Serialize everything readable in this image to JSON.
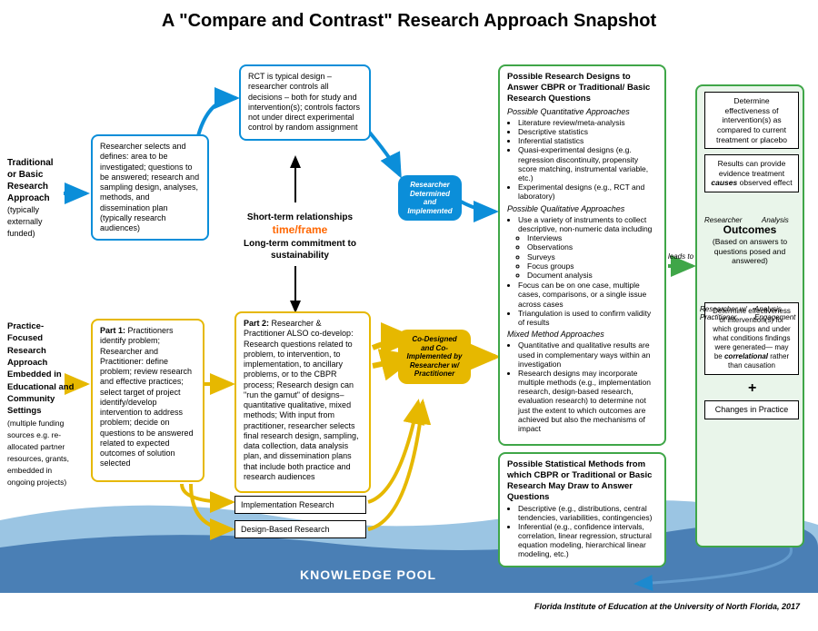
{
  "title": "A \"Compare and Contrast\" Research Approach Snapshot",
  "colors": {
    "blue": "#0b8ed9",
    "yellow": "#e6b800",
    "green": "#3fa648",
    "orange": "#ff6600",
    "pool1": "#9bc5e3",
    "pool2": "#4a7fb5",
    "text": "#000000"
  },
  "leftLabels": {
    "traditional": {
      "bold1": "Traditional",
      "bold2": "or Basic",
      "bold3": "Research",
      "bold4": "Approach",
      "note": "(typically externally funded)"
    },
    "practice": {
      "bold": "Practice-Focused Research Approach Embedded in Educational and Community Settings",
      "note": "(multiple funding sources e.g. re-allocated partner resources, grants, embedded in ongoing projects)"
    }
  },
  "blueBox1": "Researcher selects and defines: area to be investigated; questions to be answered; research and sampling design, analyses, methods, and dissemination plan (typically research audiences)",
  "blueBox2": "RCT is typical design – researcher controls all decisions – both for study and intervention(s); controls factors not under direct experimental control by random assignment",
  "blueBadge": "Researcher Determined and Implemented",
  "center": {
    "line1": "Short-term relationships",
    "timeframe": "time/frame",
    "line2": "Long-term commitment to sustainability"
  },
  "yellowBox1": {
    "part": "Part 1:",
    "text": " Practitioners identify problem; Researcher and Practitioner: define problem; review research and effective practices; select target of project identify/develop intervention to address problem; decide on questions to be answered related to expected outcomes of solution selected"
  },
  "yellowBox2": {
    "part": "Part 2:",
    "text": " Researcher & Practitioner ALSO co-develop: Research questions related to problem, to intervention, to implementation, to ancillary problems, or to the CBPR process; Research design can \"run the gamut\" of designs– quantitative qualitative, mixed methods; With input from practitioner, researcher selects final research design, sampling, data collection, data analysis plan, and dissemination plans that include both practice and research audiences"
  },
  "implBox": "Implementation Research",
  "designBox": "Design-Based Research",
  "yellowBadge": "Co-Designed and Co-Implemented by Researcher w/ Practitioner",
  "greenDesigns": {
    "title": "Possible Research Designs to Answer CBPR or Traditional/ Basic Research Questions",
    "quantHead": "Possible Quantitative Approaches",
    "quant": [
      "Literature review/meta-analysis",
      "Descriptive statistics",
      "Inferential statistics",
      "Quasi-experimental designs (e.g. regression discontinuity, propensity score matching, instrumental variable, etc.)",
      "Experimental designs (e.g., RCT and laboratory)"
    ],
    "qualHead": "Possible Qualitative Approaches",
    "qualIntro": "Use a variety of instruments to collect descriptive, non-numeric data including",
    "qualSub": [
      "Interviews",
      "Observations",
      "Surveys",
      "Focus groups",
      "Document analysis"
    ],
    "qualMore": [
      "Focus can be on one case, multiple cases, comparisons, or a single issue across cases",
      "Triangulation is used to confirm validity of results"
    ],
    "mixedHead": "Mixed Method Approaches",
    "mixed": [
      "Quantitative and qualitative results are used in complementary ways within an investigation",
      "Research designs may incorporate multiple methods (e.g., implementation research, design-based research, evaluation research) to determine not just the extent to which outcomes are achieved but also the mechanisms of impact"
    ]
  },
  "greenStats": {
    "title": "Possible Statistical Methods from which CBPR or Traditional or Basic Research May Draw to Answer Questions",
    "items": [
      "Descriptive (e.g., distributions, central tendencies, variabilities, contingencies)",
      "Inferential (e.g., confidence intervals, correlation, linear regression, structural equation modeling, hierarchical linear modeling, etc.)"
    ]
  },
  "leadsTo": "leads to",
  "outcomes": {
    "top": "Determine effectiveness of intervention(s) as compared to current treatment or placebo",
    "evidence": "Results can provide evidence treatment causes observed effect",
    "causesWord": "causes",
    "title": "Outcomes",
    "sub": "(Based on answers to questions posed and answered)",
    "researcher": "Researcher",
    "analysis": "Analysis",
    "researcherW": "Researcher w/ Practitioner",
    "analysisE": "Analysis Engagement",
    "bottom": "Determine effectiveness of intervention(s) for which groups and under what conditions findings were generated— may be correlational rather than causation",
    "correlWord": "correlational",
    "changes": "Changes in Practice"
  },
  "knowledgePool": "KNOWLEDGE POOL",
  "footer": "Florida Institute of Education at the University of North Florida, 2017"
}
